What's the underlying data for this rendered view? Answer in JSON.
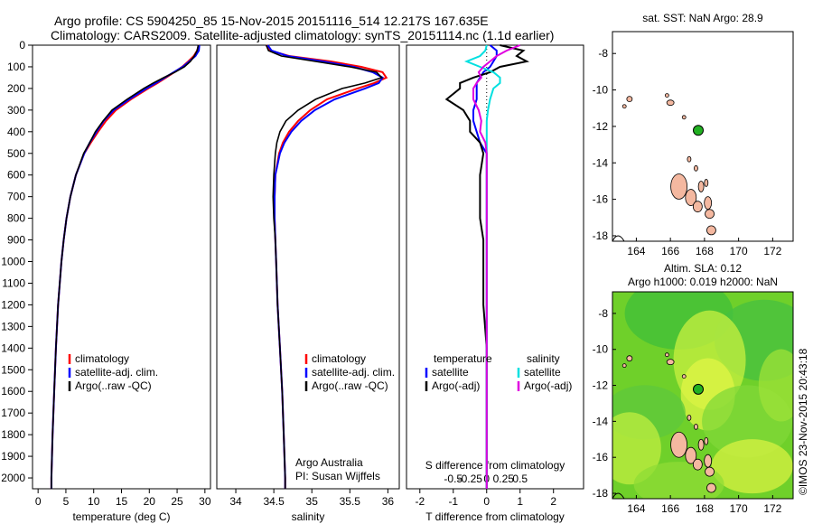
{
  "header": {
    "line1": "Argo profile: CS 5904250_85 15-Nov-2015 20151116_514 12.217S 167.635E",
    "line2": "Climatology: CARS2009. Satellite-adjusted climatology: synTS_20151114.nc (1.1d earlier)"
  },
  "footer": {
    "institution": "Argo Australia",
    "pi": "PI: Susan Wijffels",
    "stamp": "©IMOS 23-Nov-2015 20:43:18"
  },
  "colors": {
    "climatology": "#ff0000",
    "satellite": "#0000ff",
    "argo": "#000000",
    "sal_satellite": "#00e0e0",
    "sal_argo": "#e000e0",
    "land": "#f4b8a0",
    "float": "#22b022"
  },
  "chart_data": [
    {
      "type": "line",
      "panel": "temperature",
      "xlabel": "temperature (deg C)",
      "ylabel": "",
      "xlim": [
        -1,
        31
      ],
      "ylim": [
        2050,
        0
      ],
      "xticks": [
        0,
        5,
        10,
        15,
        20,
        25,
        30
      ],
      "yticks": [
        0,
        100,
        200,
        300,
        400,
        500,
        600,
        700,
        800,
        900,
        1000,
        1100,
        1200,
        1300,
        1400,
        1500,
        1600,
        1700,
        1800,
        1900,
        2000
      ],
      "legend": [
        "climatology",
        "satellite-adj. clim.",
        "Argo(..raw -QC)"
      ],
      "legend_position": "lower-right",
      "depth": [
        0,
        25,
        50,
        75,
        100,
        125,
        150,
        175,
        200,
        250,
        300,
        350,
        400,
        450,
        500,
        600,
        700,
        800,
        900,
        1000,
        1200,
        1400,
        1600,
        1800,
        2000,
        2050
      ],
      "series": [
        {
          "name": "climatology",
          "values": [
            28.9,
            28.6,
            28.0,
            27.0,
            25.9,
            24.5,
            23.0,
            21.5,
            19.8,
            16.7,
            14.0,
            12.2,
            10.8,
            9.5,
            8.3,
            6.8,
            5.8,
            5.1,
            4.6,
            4.2,
            3.6,
            3.2,
            2.9,
            2.6,
            2.4,
            2.4
          ]
        },
        {
          "name": "satellite-adj. clim.",
          "values": [
            29.0,
            28.9,
            28.3,
            27.2,
            26.0,
            24.4,
            22.8,
            21.2,
            19.5,
            16.4,
            13.6,
            11.8,
            10.5,
            9.3,
            8.3,
            6.8,
            5.8,
            5.1,
            4.6,
            4.2,
            3.6,
            3.2,
            2.9,
            2.6,
            2.4,
            2.4
          ]
        },
        {
          "name": "Argo(..raw -QC)",
          "values": [
            28.8,
            28.6,
            28.1,
            27.4,
            26.3,
            24.6,
            22.6,
            20.7,
            19.0,
            16.0,
            13.3,
            11.7,
            10.3,
            9.3,
            8.2,
            6.8,
            5.8,
            5.1,
            4.6,
            4.2,
            3.6,
            3.2,
            2.9,
            2.6,
            2.4,
            2.4
          ]
        }
      ]
    },
    {
      "type": "line",
      "panel": "salinity",
      "xlabel": "salinity",
      "ylabel": "",
      "xlim": [
        33.75,
        36.15
      ],
      "ylim": [
        2050,
        0
      ],
      "xticks": [
        34,
        34.5,
        35,
        35.5,
        36
      ],
      "legend": [
        "climatology",
        "satellite-adj. clim.",
        "Argo(..raw -QC)"
      ],
      "legend_position": "lower-right",
      "depth": [
        0,
        25,
        50,
        75,
        100,
        125,
        150,
        175,
        200,
        250,
        300,
        350,
        400,
        450,
        500,
        600,
        700,
        800,
        900,
        1000,
        1200,
        1400,
        1600,
        1800,
        2000,
        2050
      ],
      "series": [
        {
          "name": "climatology",
          "values": [
            34.4,
            34.45,
            34.7,
            35.25,
            35.65,
            35.93,
            35.98,
            35.82,
            35.6,
            35.2,
            34.98,
            34.82,
            34.7,
            34.62,
            34.57,
            34.52,
            34.51,
            34.51,
            34.52,
            34.53,
            34.55,
            34.58,
            34.61,
            34.63,
            34.65,
            34.65
          ]
        },
        {
          "name": "satellite-adj. clim.",
          "values": [
            34.42,
            34.47,
            34.68,
            35.15,
            35.55,
            35.8,
            35.93,
            35.88,
            35.7,
            35.3,
            35.04,
            34.86,
            34.73,
            34.64,
            34.58,
            34.52,
            34.51,
            34.51,
            34.52,
            34.53,
            34.55,
            34.58,
            34.61,
            34.63,
            34.65,
            34.65
          ]
        },
        {
          "name": "Argo(..raw -QC)",
          "values": [
            34.4,
            34.43,
            34.6,
            35.05,
            35.5,
            35.85,
            35.92,
            35.7,
            35.4,
            35.05,
            34.82,
            34.66,
            34.58,
            34.54,
            34.52,
            34.5,
            34.49,
            34.5,
            34.52,
            34.53,
            34.55,
            34.58,
            34.61,
            34.63,
            34.65,
            34.65
          ]
        }
      ]
    },
    {
      "type": "line",
      "panel": "differences",
      "xlabel": "T difference from climatology",
      "x2label": "S difference from climatology",
      "ylabel": "",
      "xlim": [
        -2.4,
        2.9
      ],
      "ylim": [
        2050,
        0
      ],
      "xticks": [
        -2,
        -1,
        0,
        1,
        2
      ],
      "x2ticks": [
        -0.5,
        -0.25,
        0,
        0.25,
        0.5
      ],
      "x2tick_labels": [
        "-0.5",
        "-0.25",
        "0",
        "0.25",
        "0.5"
      ],
      "legend_left_title": "temperature",
      "legend_right_title": "salinity",
      "legend": [
        "satellite",
        "Argo(-adj)",
        "satellite",
        "Argo(-adj)"
      ],
      "legend_position": "lower-center",
      "depth": [
        0,
        25,
        50,
        75,
        100,
        125,
        150,
        175,
        200,
        250,
        300,
        350,
        400,
        450,
        500,
        600,
        700,
        800,
        900,
        1000,
        1200,
        1400,
        1600,
        1800,
        2000,
        2050
      ],
      "series": [
        {
          "name": "temperature satellite",
          "values": [
            0.1,
            0.3,
            0.3,
            0.2,
            0.1,
            -0.1,
            -0.2,
            -0.3,
            -0.3,
            -0.3,
            -0.4,
            -0.4,
            -0.3,
            -0.2,
            0.0,
            0.0,
            0.0,
            0.0,
            0.0,
            0.0,
            0.0,
            0.0,
            0.0,
            0.0,
            0.0,
            0.0
          ]
        },
        {
          "name": "temperature Argo(-adj)",
          "values": [
            0.4,
            1.1,
            0.9,
            1.2,
            0.4,
            0.1,
            -0.4,
            -0.8,
            -0.8,
            -1.2,
            -0.7,
            -0.5,
            -0.5,
            -0.2,
            -0.1,
            -0.2,
            -0.2,
            -0.2,
            -0.1,
            -0.1,
            -0.1,
            0.0,
            0.0,
            0.0,
            0.0,
            0.0
          ]
        },
        {
          "name": "salinity satellite",
          "values": [
            0.0,
            -0.02,
            -0.1,
            -0.3,
            -0.1,
            0.1,
            0.2,
            0.2,
            0.1,
            0.05,
            0.02,
            0.0,
            0.0,
            0.0,
            0.0,
            0.0,
            0.0,
            0.0,
            0.0,
            0.0,
            0.0,
            0.0,
            0.0,
            0.0,
            0.0,
            0.0
          ]
        },
        {
          "name": "salinity Argo(-adj)",
          "values": [
            0.5,
            0.3,
            0.15,
            0.05,
            -0.05,
            -0.12,
            -0.08,
            -0.15,
            -0.2,
            -0.2,
            -0.12,
            -0.08,
            -0.1,
            -0.02,
            0.0,
            0.0,
            0.0,
            0.0,
            0.0,
            0.0,
            0.0,
            0.0,
            0.0,
            0.0,
            0.0,
            0.0
          ]
        }
      ]
    },
    {
      "type": "map",
      "panel": "sst-map",
      "title": "sat. SST: NaN Argo: 28.9",
      "xlim": [
        162.6,
        173.2
      ],
      "ylim": [
        -18.3,
        -6.8
      ],
      "xticks": [
        164,
        166,
        168,
        170,
        172
      ],
      "yticks": [
        -8,
        -10,
        -12,
        -14,
        -16,
        -18
      ],
      "float_position": {
        "lon": 167.635,
        "lat": -12.217
      }
    },
    {
      "type": "map",
      "panel": "sla-map",
      "title_line1": "Altim. SLA: 0.12",
      "title_line2": "Argo h1000: 0.019 h2000: NaN",
      "xlim": [
        162.6,
        173.2
      ],
      "ylim": [
        -18.3,
        -6.8
      ],
      "xticks": [
        164,
        166,
        168,
        170,
        172
      ],
      "yticks": [
        -8,
        -10,
        -12,
        -14,
        -16,
        -18
      ],
      "float_position": {
        "lon": 167.635,
        "lat": -12.217
      }
    }
  ]
}
